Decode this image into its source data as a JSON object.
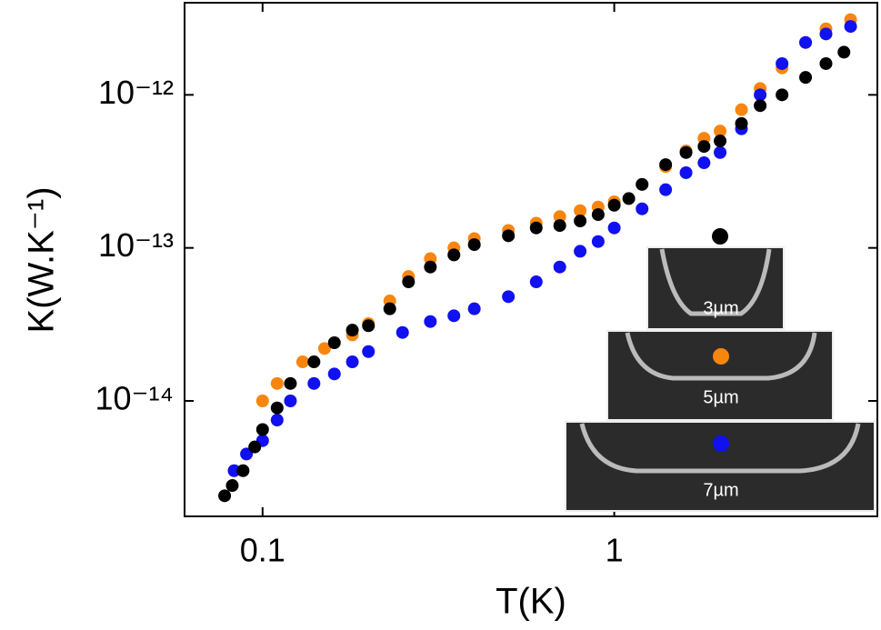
{
  "chart_data": {
    "type": "scatter",
    "x_label": "T(K)",
    "y_label": "K(W.K⁻¹)",
    "log_x": true,
    "log_y": true,
    "xlim": [
      0.06,
      5.6
    ],
    "ylim": [
      1.76e-15,
      4e-12
    ],
    "xticks": [
      0.1,
      1
    ],
    "yticks": [
      {
        "value": 1e-14,
        "label": "10⁻¹⁴"
      },
      {
        "value": 1e-13,
        "label": "10⁻¹³"
      },
      {
        "value": 1e-12,
        "label": "10⁻¹²"
      }
    ],
    "series": [
      {
        "name": "5µm",
        "color": "#f7860f",
        "x": [
          0.1,
          0.11,
          0.13,
          0.15,
          0.18,
          0.2,
          0.23,
          0.26,
          0.3,
          0.35,
          0.4,
          0.5,
          0.6,
          0.7,
          0.8,
          0.9,
          1.0,
          1.2,
          1.4,
          1.6,
          1.8,
          2.0,
          2.3,
          2.6,
          3.0,
          3.5,
          4.0,
          4.7
        ],
        "values": [
          1e-14,
          1.3e-14,
          1.8e-14,
          2.2e-14,
          2.7e-14,
          3.2e-14,
          4.5e-14,
          6.5e-14,
          8.5e-14,
          1e-13,
          1.15e-13,
          1.3e-13,
          1.45e-13,
          1.6e-13,
          1.75e-13,
          1.85e-13,
          2e-13,
          2.6e-13,
          3.4e-13,
          4.3e-13,
          5.2e-13,
          5.8e-13,
          8e-13,
          1.1e-12,
          1.5e-12,
          2.2e-12,
          2.7e-12,
          3.1e-12
        ]
      },
      {
        "name": "7µm",
        "color": "#1010f0",
        "x": [
          0.083,
          0.09,
          0.1,
          0.11,
          0.12,
          0.14,
          0.16,
          0.18,
          0.2,
          0.25,
          0.3,
          0.35,
          0.4,
          0.5,
          0.6,
          0.7,
          0.8,
          0.9,
          1.0,
          1.2,
          1.4,
          1.6,
          1.8,
          2.0,
          2.3,
          2.6,
          3.0,
          3.5,
          4.0,
          4.7
        ],
        "values": [
          3.5e-15,
          4.5e-15,
          5.5e-15,
          7.5e-15,
          1e-14,
          1.3e-14,
          1.5e-14,
          1.8e-14,
          2.1e-14,
          2.8e-14,
          3.3e-14,
          3.6e-14,
          4e-14,
          4.8e-14,
          6e-14,
          7.5e-14,
          9.5e-14,
          1.1e-13,
          1.35e-13,
          1.8e-13,
          2.4e-13,
          3.1e-13,
          3.6e-13,
          4.2e-13,
          6e-13,
          1e-12,
          1.6e-12,
          2.2e-12,
          2.5e-12,
          2.8e-12
        ]
      },
      {
        "name": "3µm",
        "color": "#000000",
        "x": [
          0.078,
          0.082,
          0.088,
          0.095,
          0.1,
          0.11,
          0.12,
          0.14,
          0.16,
          0.18,
          0.2,
          0.23,
          0.26,
          0.3,
          0.35,
          0.4,
          0.5,
          0.6,
          0.7,
          0.8,
          0.9,
          1.0,
          1.1,
          1.2,
          1.4,
          1.6,
          1.8,
          2.0,
          2.3,
          2.6,
          3.0,
          3.5,
          4.0,
          4.5
        ],
        "values": [
          2.4e-15,
          2.8e-15,
          3.5e-15,
          5e-15,
          6.5e-15,
          9e-15,
          1.3e-14,
          1.8e-14,
          2.4e-14,
          2.9e-14,
          3.1e-14,
          4e-14,
          6e-14,
          7.5e-14,
          9e-14,
          1.05e-13,
          1.2e-13,
          1.35e-13,
          1.4e-13,
          1.5e-13,
          1.65e-13,
          1.9e-13,
          2.1e-13,
          2.6e-13,
          3.5e-13,
          4.2e-13,
          4.6e-13,
          5e-13,
          6.5e-13,
          8.5e-13,
          1e-12,
          1.3e-12,
          1.6e-12,
          1.9e-12
        ]
      }
    ]
  }
}
